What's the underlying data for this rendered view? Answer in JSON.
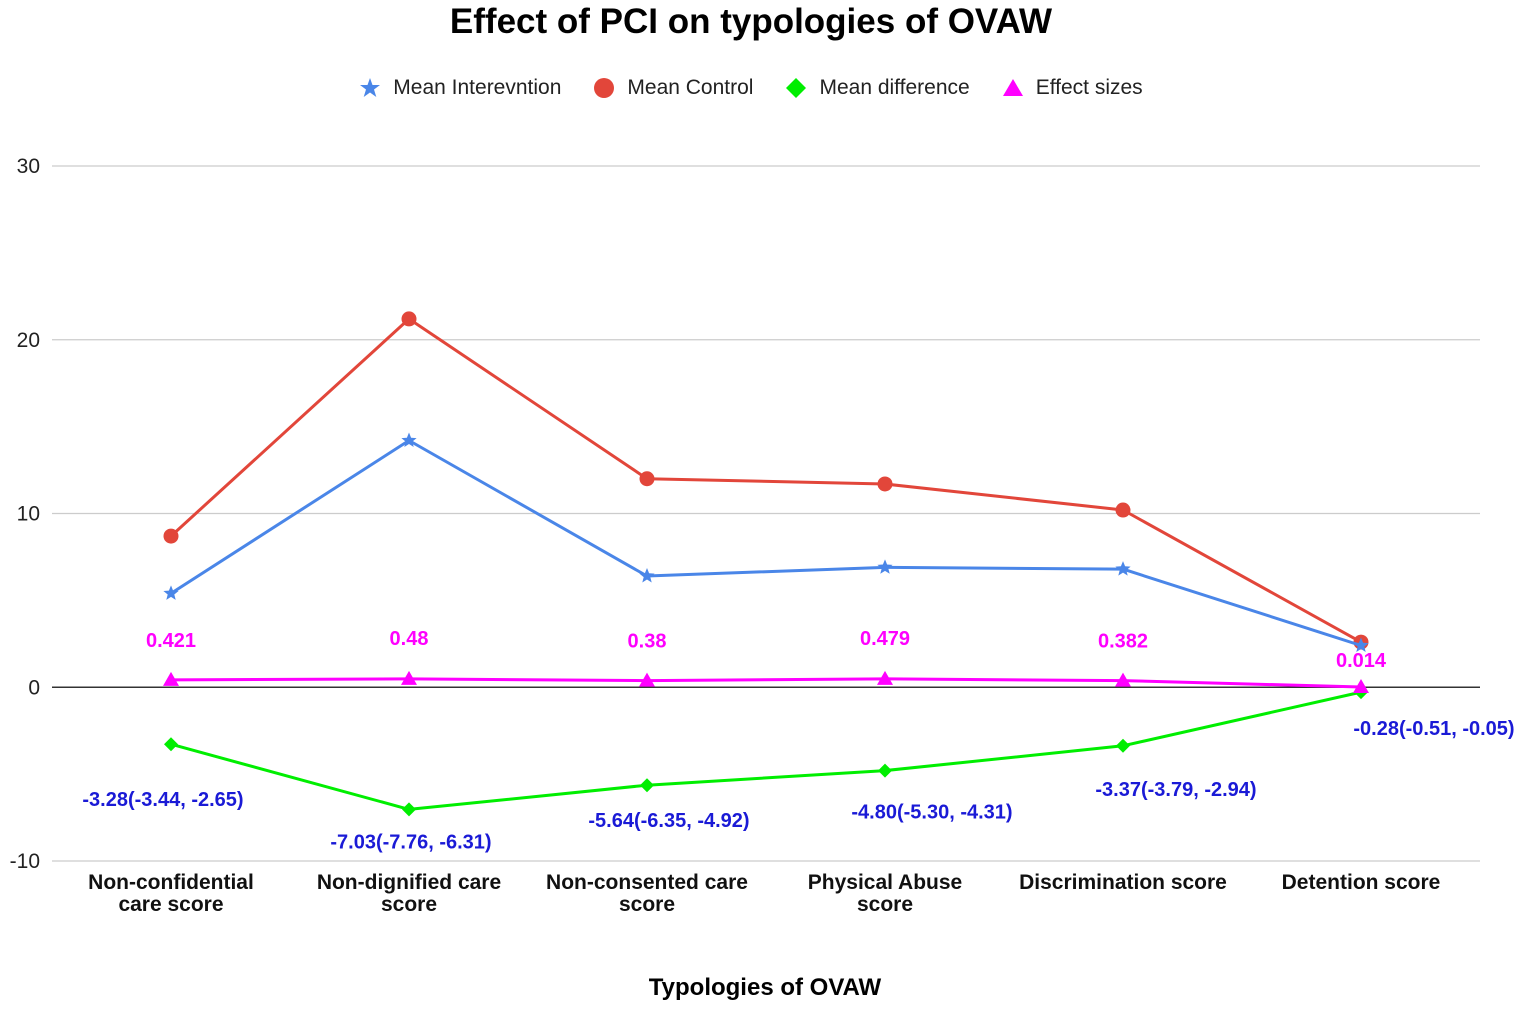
{
  "chart_data": {
    "type": "line",
    "title": "Effect of PCI on typologies of OVAW",
    "xlabel": "Typologies of OVAW",
    "ylabel": "",
    "ylim": [
      -10,
      30
    ],
    "yticks": [
      30,
      20,
      10,
      0,
      -10
    ],
    "grid": true,
    "legend_position": "top",
    "categories": [
      [
        "Non-confidential",
        "care score"
      ],
      [
        "Non-dignified care",
        "score"
      ],
      [
        "Non-consented care",
        "score"
      ],
      [
        "Physical Abuse",
        "score"
      ],
      [
        "Discrimination score"
      ],
      [
        "Detention score"
      ]
    ],
    "series": [
      {
        "name": "Mean Interevntion",
        "color": "#4a86e8",
        "marker": "star",
        "values": [
          5.4,
          14.2,
          6.4,
          6.9,
          6.8,
          2.4
        ]
      },
      {
        "name": "Mean Control",
        "color": "#e2463a",
        "marker": "circle",
        "values": [
          8.7,
          21.2,
          12.0,
          11.7,
          10.2,
          2.6
        ]
      },
      {
        "name": "Mean difference",
        "color": "#00ee00",
        "marker": "diamond",
        "values": [
          -3.28,
          -7.03,
          -5.64,
          -4.8,
          -3.37,
          -0.28
        ],
        "data_labels": [
          "-3.28(-3.44, -2.65)",
          "-7.03(-7.76, -6.31)",
          "-5.64(-6.35, -4.92)",
          "-4.80(-5.30, -4.31)",
          "-3.37(-3.79, -2.94)",
          "-0.28(-0.51, -0.05)"
        ],
        "label_color": "#1a1ad6"
      },
      {
        "name": "Effect sizes",
        "color": "#ff00ff",
        "marker": "triangle",
        "values": [
          0.421,
          0.48,
          0.38,
          0.479,
          0.382,
          0.014
        ],
        "data_labels": [
          "0.421",
          "0.48",
          "0.38",
          "0.479",
          "0.382",
          "0.014"
        ],
        "label_color": "#ff00ff"
      }
    ]
  }
}
